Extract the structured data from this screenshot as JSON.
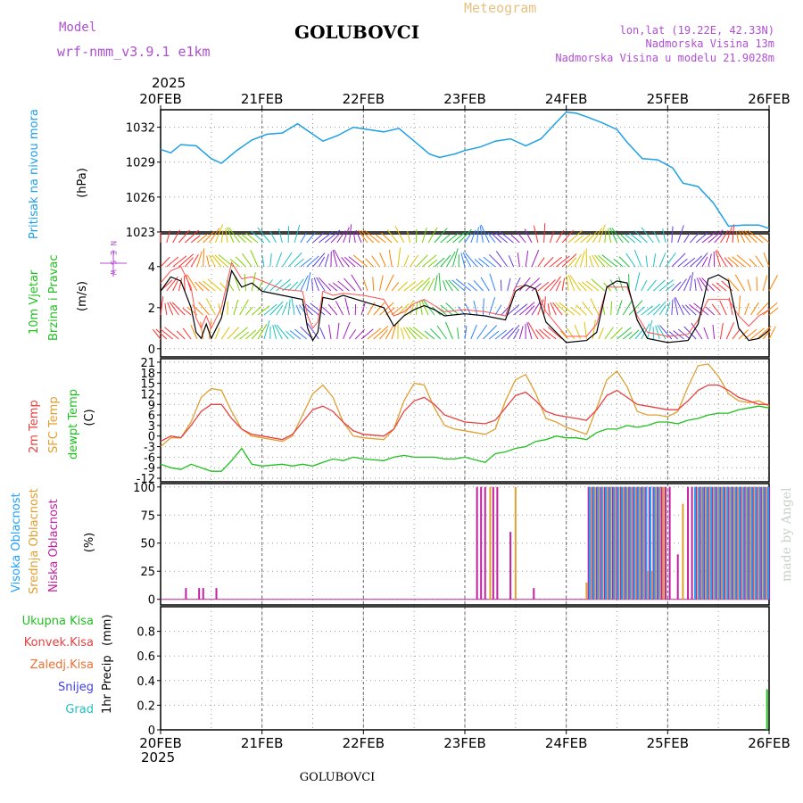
{
  "header": {
    "model_label": "Model",
    "model_name": "wrf-nmm_v3.9.1 e1km",
    "station": "GOLUBOVCI",
    "meteogram": "Meteogram",
    "coords": "lon,lat (19.22E, 42.33N)",
    "altitude": "Nadmorska Visina 13m",
    "model_altitude": "Nadmorska Visina u modelu 21.9028m",
    "year": "2025",
    "footer_station": "GOLUBOVCI",
    "credit": "made by Angel"
  },
  "colors": {
    "pressure": "#1ea0e6",
    "temp2m": "#e84040",
    "sfc": "#e0a030",
    "dew": "#20c020",
    "wind": "#000000",
    "gust": "#ff5050",
    "high": "#20a0ff",
    "mid": "#e0a030",
    "low": "#c020a0",
    "total_precip": "#20c020"
  },
  "chart_data": [
    {
      "type": "line",
      "panel": "pressure",
      "ylabel": "Pritisak na nivou mora",
      "unit": "(hPa)",
      "x_unit": "days since 20FEB 00UTC",
      "xlim": [
        0,
        6
      ],
      "ylim": [
        1023,
        1033.5
      ],
      "yticks": [
        1023,
        1026,
        1029,
        1032
      ],
      "x": [
        0,
        0.1,
        0.2,
        0.35,
        0.5,
        0.6,
        0.75,
        0.9,
        1.05,
        1.2,
        1.35,
        1.5,
        1.6,
        1.75,
        1.9,
        2.05,
        2.2,
        2.35,
        2.5,
        2.65,
        2.75,
        2.9,
        3.0,
        3.15,
        3.3,
        3.45,
        3.6,
        3.75,
        3.9,
        4.0,
        4.1,
        4.2,
        4.35,
        4.5,
        4.6,
        4.75,
        4.9,
        5.05,
        5.15,
        5.3,
        5.45,
        5.6,
        5.75,
        5.9,
        6.0
      ],
      "series": [
        {
          "name": "Pritisak na nivou mora",
          "values": [
            1030.1,
            1029.8,
            1030.5,
            1030.4,
            1029.3,
            1028.9,
            1030.0,
            1030.9,
            1031.4,
            1031.5,
            1032.3,
            1031.4,
            1030.8,
            1031.3,
            1032.0,
            1031.8,
            1031.6,
            1031.9,
            1030.8,
            1029.7,
            1029.4,
            1029.7,
            1030.0,
            1030.3,
            1030.8,
            1031.0,
            1030.4,
            1031.0,
            1032.4,
            1033.3,
            1033.2,
            1032.9,
            1032.4,
            1031.8,
            1030.7,
            1029.3,
            1029.2,
            1028.5,
            1027.2,
            1026.9,
            1025.5,
            1023.5,
            1023.6,
            1023.6,
            1023.3
          ]
        }
      ]
    },
    {
      "type": "line",
      "panel": "wind",
      "ylabel": "10m Vjetar Brzina i Pravac",
      "unit": "(m/s)",
      "compass": "N  E  S  W",
      "x_unit": "days since 20FEB 00UTC",
      "xlim": [
        0,
        6
      ],
      "ylim": [
        -0.4,
        5.6
      ],
      "yticks": [
        0,
        2,
        4
      ],
      "x": [
        0,
        0.1,
        0.2,
        0.3,
        0.35,
        0.4,
        0.45,
        0.5,
        0.6,
        0.7,
        0.8,
        0.9,
        1.0,
        1.2,
        1.4,
        1.45,
        1.5,
        1.55,
        1.6,
        1.7,
        1.8,
        2.0,
        2.2,
        2.3,
        2.4,
        2.5,
        2.6,
        2.7,
        2.8,
        3.0,
        3.2,
        3.4,
        3.5,
        3.6,
        3.7,
        3.8,
        4.0,
        4.2,
        4.3,
        4.4,
        4.5,
        4.6,
        4.7,
        4.8,
        5.0,
        5.2,
        5.3,
        5.4,
        5.5,
        5.6,
        5.7,
        5.8,
        5.9,
        6.0
      ],
      "series": [
        {
          "name": "speed",
          "values": [
            2.8,
            3.5,
            3.3,
            2.0,
            0.8,
            0.5,
            1.2,
            0.5,
            1.5,
            3.8,
            3.0,
            3.2,
            2.8,
            2.6,
            2.4,
            1.0,
            0.4,
            0.8,
            2.5,
            2.4,
            2.6,
            2.3,
            2.0,
            1.1,
            1.6,
            1.9,
            2.1,
            1.9,
            1.6,
            1.7,
            1.6,
            1.4,
            2.8,
            3.1,
            2.9,
            1.3,
            0.3,
            0.4,
            0.8,
            3.0,
            3.3,
            3.2,
            1.4,
            0.5,
            0.3,
            0.4,
            1.2,
            3.4,
            3.6,
            3.3,
            1.0,
            0.4,
            0.5,
            0.9
          ]
        },
        {
          "name": "gust",
          "values": [
            3.2,
            3.8,
            4.0,
            3.0,
            1.5,
            1.0,
            1.6,
            1.0,
            2.0,
            4.2,
            3.4,
            3.5,
            3.3,
            2.9,
            2.8,
            1.6,
            1.0,
            1.3,
            2.8,
            2.6,
            2.7,
            2.6,
            2.4,
            1.6,
            1.8,
            2.2,
            2.4,
            2.1,
            1.8,
            1.9,
            1.8,
            1.6,
            3.0,
            3.1,
            2.9,
            1.8,
            0.6,
            0.6,
            1.2,
            3.0,
            3.0,
            3.0,
            1.6,
            0.8,
            0.6,
            0.7,
            1.4,
            2.4,
            2.4,
            2.4,
            1.6,
            1.1,
            1.6,
            1.9
          ]
        }
      ]
    },
    {
      "type": "line",
      "panel": "temperature",
      "ylabel": "2m Temp / SFC Temp / dewpt Temp",
      "unit": "(C)",
      "x_unit": "days since 20FEB 00UTC",
      "xlim": [
        0,
        6
      ],
      "ylim": [
        -13,
        22
      ],
      "yticks": [
        -12,
        -9,
        -6,
        -3,
        0,
        3,
        6,
        9,
        12,
        15,
        18,
        21
      ],
      "x": [
        0,
        0.1,
        0.2,
        0.3,
        0.4,
        0.5,
        0.6,
        0.7,
        0.8,
        0.9,
        1.0,
        1.2,
        1.3,
        1.4,
        1.5,
        1.6,
        1.7,
        1.8,
        1.9,
        2.0,
        2.2,
        2.3,
        2.4,
        2.5,
        2.6,
        2.7,
        2.8,
        2.9,
        3.0,
        3.2,
        3.3,
        3.4,
        3.5,
        3.6,
        3.7,
        3.8,
        3.9,
        4.0,
        4.1,
        4.2,
        4.3,
        4.4,
        4.5,
        4.6,
        4.7,
        4.8,
        4.9,
        5.0,
        5.1,
        5.2,
        5.3,
        5.4,
        5.5,
        5.6,
        5.7,
        5.8,
        5.9,
        6.0
      ],
      "series": [
        {
          "name": "2m Temp",
          "values": [
            -1.5,
            0,
            -0.5,
            3,
            7,
            9,
            9,
            5,
            2,
            0.5,
            0,
            -1,
            0.5,
            4,
            7.5,
            8.5,
            7,
            4,
            1.5,
            0.5,
            0,
            2,
            7,
            10,
            11,
            9,
            6,
            5,
            4,
            3.5,
            4.5,
            8,
            11.5,
            12.5,
            10,
            7,
            6,
            5.5,
            5,
            4.5,
            7.5,
            11.5,
            13,
            11,
            9,
            8.5,
            8,
            7.5,
            7.5,
            10,
            13,
            14.5,
            14.5,
            13,
            11,
            10,
            9,
            9
          ]
        },
        {
          "name": "SFC Temp",
          "values": [
            -3,
            -0.5,
            -0.5,
            4,
            11,
            13.5,
            13,
            7,
            2,
            0,
            -0.5,
            -1.5,
            0,
            6,
            12,
            14.5,
            11,
            4,
            0,
            -0.5,
            -1,
            2,
            10,
            15,
            14.5,
            8,
            3,
            2,
            1.5,
            0.5,
            2,
            10,
            16,
            17.5,
            12,
            5,
            4,
            2.5,
            1.5,
            0.5,
            8,
            16,
            18.5,
            14,
            7,
            6,
            6,
            5.5,
            7,
            14,
            20,
            20.5,
            17,
            12,
            10,
            9.5,
            10,
            8.5
          ]
        },
        {
          "name": "dewpt Temp",
          "values": [
            -8,
            -9,
            -9.5,
            -8,
            -9,
            -10,
            -10,
            -7,
            -3.5,
            -8,
            -8.5,
            -8,
            -8.5,
            -8,
            -8.5,
            -7.5,
            -6.5,
            -7,
            -6,
            -6.5,
            -7,
            -6,
            -5.5,
            -6,
            -6,
            -6,
            -6.5,
            -6.5,
            -6,
            -7.5,
            -5,
            -4.5,
            -3.5,
            -3,
            -1.5,
            -1,
            0,
            -0.5,
            -0.5,
            -1,
            1,
            2,
            2,
            3,
            2.5,
            3,
            4,
            4,
            3.5,
            4.5,
            5,
            6,
            6.5,
            6.5,
            7.5,
            8,
            8.5,
            8
          ]
        }
      ]
    },
    {
      "type": "bar",
      "panel": "cloud",
      "ylabel": "Visoka Oblacnost / Srednja Oblacnost / Niska Oblacnost",
      "unit": "(%)",
      "x_unit": "days since 20FEB 00UTC",
      "xlim": [
        0,
        6
      ],
      "ylim": [
        -5,
        103
      ],
      "yticks": [
        0,
        25,
        50,
        75,
        100
      ],
      "series": [
        {
          "name": "Niska Oblacnost",
          "x": [
            0.25,
            0.38,
            0.42,
            0.55,
            3.12,
            3.16,
            3.2,
            3.28,
            3.32,
            3.45,
            3.68,
            4.22,
            4.26,
            4.3,
            4.34,
            4.38,
            4.42,
            4.46,
            4.5,
            4.54,
            4.58,
            4.62,
            4.66,
            4.7,
            4.74,
            4.78,
            4.82,
            4.86,
            4.9,
            4.94,
            4.98,
            5.02,
            5.1,
            5.2,
            5.24,
            5.28,
            5.32,
            5.36,
            5.4,
            5.44,
            5.48,
            5.52,
            5.56,
            5.6,
            5.64,
            5.68,
            5.72,
            5.76,
            5.8,
            5.84,
            5.88,
            5.92,
            5.96,
            6.0
          ],
          "values": [
            10,
            10,
            10,
            10,
            100,
            100,
            100,
            100,
            100,
            60,
            10,
            100,
            100,
            100,
            100,
            100,
            100,
            100,
            100,
            100,
            100,
            100,
            100,
            100,
            100,
            100,
            100,
            100,
            100,
            100,
            100,
            100,
            40,
            100,
            100,
            100,
            100,
            100,
            100,
            100,
            100,
            100,
            100,
            100,
            100,
            100,
            100,
            100,
            100,
            100,
            100,
            100,
            100,
            100
          ]
        },
        {
          "name": "Srednja Oblacnost",
          "x": [
            3.25,
            3.5,
            4.2,
            4.24,
            4.28,
            4.32,
            4.36,
            4.4,
            4.44,
            4.48,
            4.52,
            4.56,
            4.6,
            4.64,
            4.68,
            4.72,
            4.76,
            4.8,
            4.84,
            4.88,
            4.92,
            4.96,
            5.15,
            5.3,
            5.34,
            5.38,
            5.42,
            5.46,
            5.5,
            5.54,
            5.58,
            5.62,
            5.66,
            5.7,
            5.74,
            5.78,
            5.82,
            5.86,
            5.9,
            5.94,
            5.98
          ],
          "values": [
            100,
            100,
            15,
            100,
            100,
            100,
            100,
            100,
            100,
            100,
            100,
            100,
            100,
            100,
            100,
            100,
            100,
            25,
            25,
            100,
            100,
            100,
            85,
            100,
            100,
            100,
            100,
            100,
            100,
            100,
            100,
            100,
            100,
            100,
            100,
            100,
            100,
            100,
            100,
            100,
            100
          ]
        },
        {
          "name": "Visoka Oblacnost",
          "x": [
            4.23,
            4.27,
            4.31,
            4.35,
            4.39,
            4.43,
            4.47,
            4.51,
            4.55,
            4.59,
            4.63,
            4.67,
            4.71,
            4.75,
            4.79,
            4.83,
            4.87,
            4.91,
            5.27,
            5.31,
            5.35,
            5.39,
            5.43,
            5.47,
            5.51,
            5.55,
            5.59,
            5.63,
            5.67,
            5.71,
            5.75,
            5.79,
            5.83,
            5.87,
            5.91,
            5.95,
            5.99
          ],
          "values": [
            100,
            100,
            100,
            100,
            100,
            100,
            100,
            100,
            100,
            100,
            100,
            100,
            100,
            100,
            100,
            100,
            100,
            100,
            100,
            100,
            100,
            100,
            100,
            100,
            100,
            100,
            100,
            100,
            100,
            100,
            100,
            100,
            100,
            100,
            100,
            100,
            100
          ]
        }
      ]
    },
    {
      "type": "bar",
      "panel": "precip",
      "ylabel": "1hr Precip",
      "unit": "(mm)",
      "x_unit": "days since 20FEB 00UTC",
      "xlim": [
        0,
        6
      ],
      "ylim": [
        0,
        1.0
      ],
      "yticks": [
        0,
        0.2,
        0.4,
        0.6,
        0.8
      ],
      "legend": [
        "Ukupna Kisa",
        "Konvek.Kisa",
        "Zaledj.Kisa",
        "Snijeg",
        "Grad"
      ],
      "series": [
        {
          "name": "Ukupna Kisa",
          "x": [
            5.98
          ],
          "values": [
            0.33
          ]
        }
      ]
    }
  ],
  "xaxis": {
    "labels": [
      "20FEB",
      "21FEB",
      "22FEB",
      "23FEB",
      "24FEB",
      "25FEB",
      "26FEB"
    ],
    "positions": [
      0,
      1,
      2,
      3,
      4,
      5,
      6
    ]
  },
  "legend_labels": {
    "pressure": "Pritisak na nivou mora",
    "wind1": "10m Vjetar",
    "wind2": "Brzina i Pravac",
    "temp2m": "2m Temp",
    "sfc": "SFC Temp",
    "dew": "dewpt Temp",
    "high": "Visoka Oblacnost",
    "mid": "Srednja Oblacnost",
    "low": "Niska Oblacnost",
    "ukupna": "Ukupna Kisa",
    "konvek": "Konvek.Kisa",
    "zaledj": "Zaledj.Kisa",
    "snijeg": "Snijeg",
    "grad": "Grad"
  }
}
